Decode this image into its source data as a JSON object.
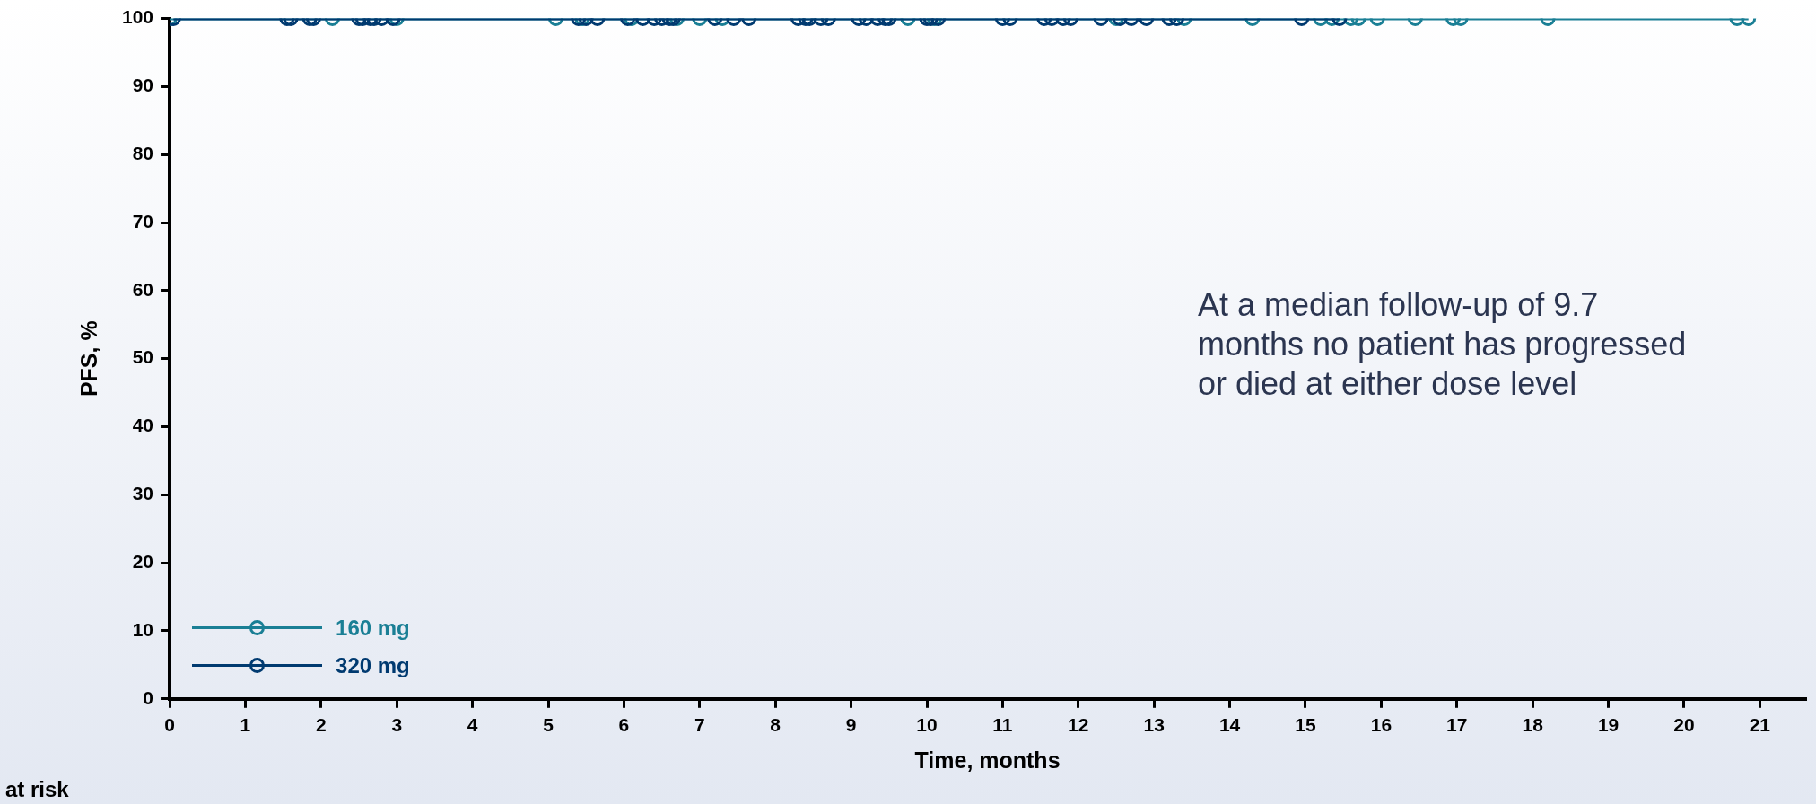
{
  "chart_data": {
    "type": "line",
    "xlabel": "Time, months",
    "ylabel": "PFS, %",
    "xlim": [
      0,
      21.6
    ],
    "xticks": [
      0,
      1,
      2,
      3,
      4,
      5,
      6,
      7,
      8,
      9,
      10,
      11,
      12,
      13,
      14,
      15,
      16,
      17,
      18,
      19,
      20,
      21
    ],
    "ylim": [
      0,
      100
    ],
    "yticks": [
      0,
      10,
      20,
      30,
      40,
      50,
      60,
      70,
      80,
      90,
      100
    ],
    "grid": false,
    "legend": "bottom left",
    "marker": "circle",
    "line_style": "solid",
    "annotations": [
      "At a median follow-up of 9.7 months no patient has progressed or died at either dose level",
      "at risk"
    ],
    "series": [
      {
        "name": "160 mg",
        "color": "#1a7f95",
        "x": [
          0,
          2.15,
          3.0,
          5.1,
          5.45,
          6.1,
          6.7,
          7.0,
          7.3,
          9.75,
          10.1,
          12.5,
          13.4,
          14.3,
          15.2,
          15.35,
          15.6,
          15.7,
          15.95,
          16.45,
          16.95,
          17.05,
          18.2,
          20.7,
          20.85
        ],
        "values": [
          100,
          100,
          100,
          100,
          100,
          100,
          100,
          100,
          100,
          100,
          100,
          100,
          100,
          100,
          100,
          100,
          100,
          100,
          100,
          100,
          100,
          100,
          100,
          100,
          100
        ]
      },
      {
        "name": "320 mg",
        "color": "#003a70",
        "x": [
          0.05,
          1.55,
          1.6,
          1.85,
          1.9,
          2.5,
          2.55,
          2.65,
          2.7,
          2.8,
          2.95,
          5.4,
          5.5,
          5.65,
          6.05,
          6.25,
          6.4,
          6.5,
          6.6,
          6.65,
          7.2,
          7.45,
          7.65,
          8.3,
          8.4,
          8.45,
          8.6,
          8.7,
          9.1,
          9.2,
          9.35,
          9.45,
          9.5,
          10.0,
          10.05,
          10.15,
          11.0,
          11.1,
          11.55,
          11.65,
          11.8,
          11.9,
          12.3,
          12.55,
          12.7,
          12.9,
          13.2,
          13.3,
          14.95,
          15.45
        ],
        "values": [
          100,
          100,
          100,
          100,
          100,
          100,
          100,
          100,
          100,
          100,
          100,
          100,
          100,
          100,
          100,
          100,
          100,
          100,
          100,
          100,
          100,
          100,
          100,
          100,
          100,
          100,
          100,
          100,
          100,
          100,
          100,
          100,
          100,
          100,
          100,
          100,
          100,
          100,
          100,
          100,
          100,
          100,
          100,
          100,
          100,
          100,
          100,
          100,
          100,
          100
        ]
      }
    ]
  }
}
